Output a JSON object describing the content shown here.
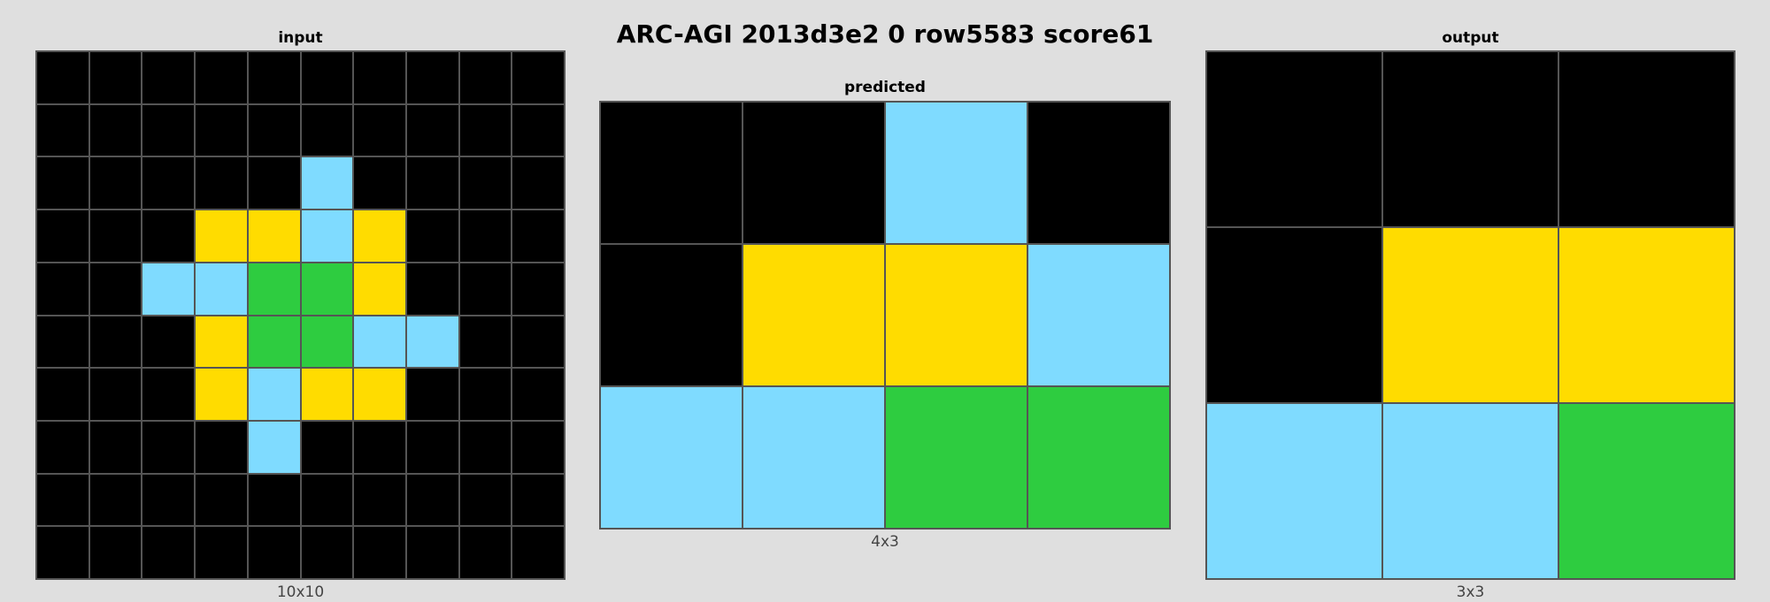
{
  "title": "ARC-AGI 2013d3e2 0 row5583 score61",
  "palette": {
    "0": "#000000",
    "3": "#2ecc40",
    "4": "#ffdc00",
    "8": "#7fdbff"
  },
  "panels": {
    "input": {
      "label": "input",
      "dims": "10x10",
      "rows": 10,
      "cols": 10,
      "cells": [
        [
          0,
          0,
          0,
          0,
          0,
          0,
          0,
          0,
          0,
          0
        ],
        [
          0,
          0,
          0,
          0,
          0,
          0,
          0,
          0,
          0,
          0
        ],
        [
          0,
          0,
          0,
          0,
          0,
          8,
          0,
          0,
          0,
          0
        ],
        [
          0,
          0,
          0,
          4,
          4,
          8,
          4,
          0,
          0,
          0
        ],
        [
          0,
          0,
          8,
          8,
          3,
          3,
          4,
          0,
          0,
          0
        ],
        [
          0,
          0,
          0,
          4,
          3,
          3,
          8,
          8,
          0,
          0
        ],
        [
          0,
          0,
          0,
          4,
          8,
          4,
          4,
          0,
          0,
          0
        ],
        [
          0,
          0,
          0,
          0,
          8,
          0,
          0,
          0,
          0,
          0
        ],
        [
          0,
          0,
          0,
          0,
          0,
          0,
          0,
          0,
          0,
          0
        ],
        [
          0,
          0,
          0,
          0,
          0,
          0,
          0,
          0,
          0,
          0
        ]
      ]
    },
    "predicted": {
      "label": "predicted",
      "dims": "4x3",
      "rows": 3,
      "cols": 4,
      "cells": [
        [
          0,
          0,
          8,
          0
        ],
        [
          0,
          4,
          4,
          8
        ],
        [
          8,
          8,
          3,
          3
        ]
      ]
    },
    "output": {
      "label": "output",
      "dims": "3x3",
      "rows": 3,
      "cols": 3,
      "cells": [
        [
          0,
          0,
          0
        ],
        [
          0,
          4,
          4
        ],
        [
          8,
          8,
          3
        ]
      ]
    }
  }
}
